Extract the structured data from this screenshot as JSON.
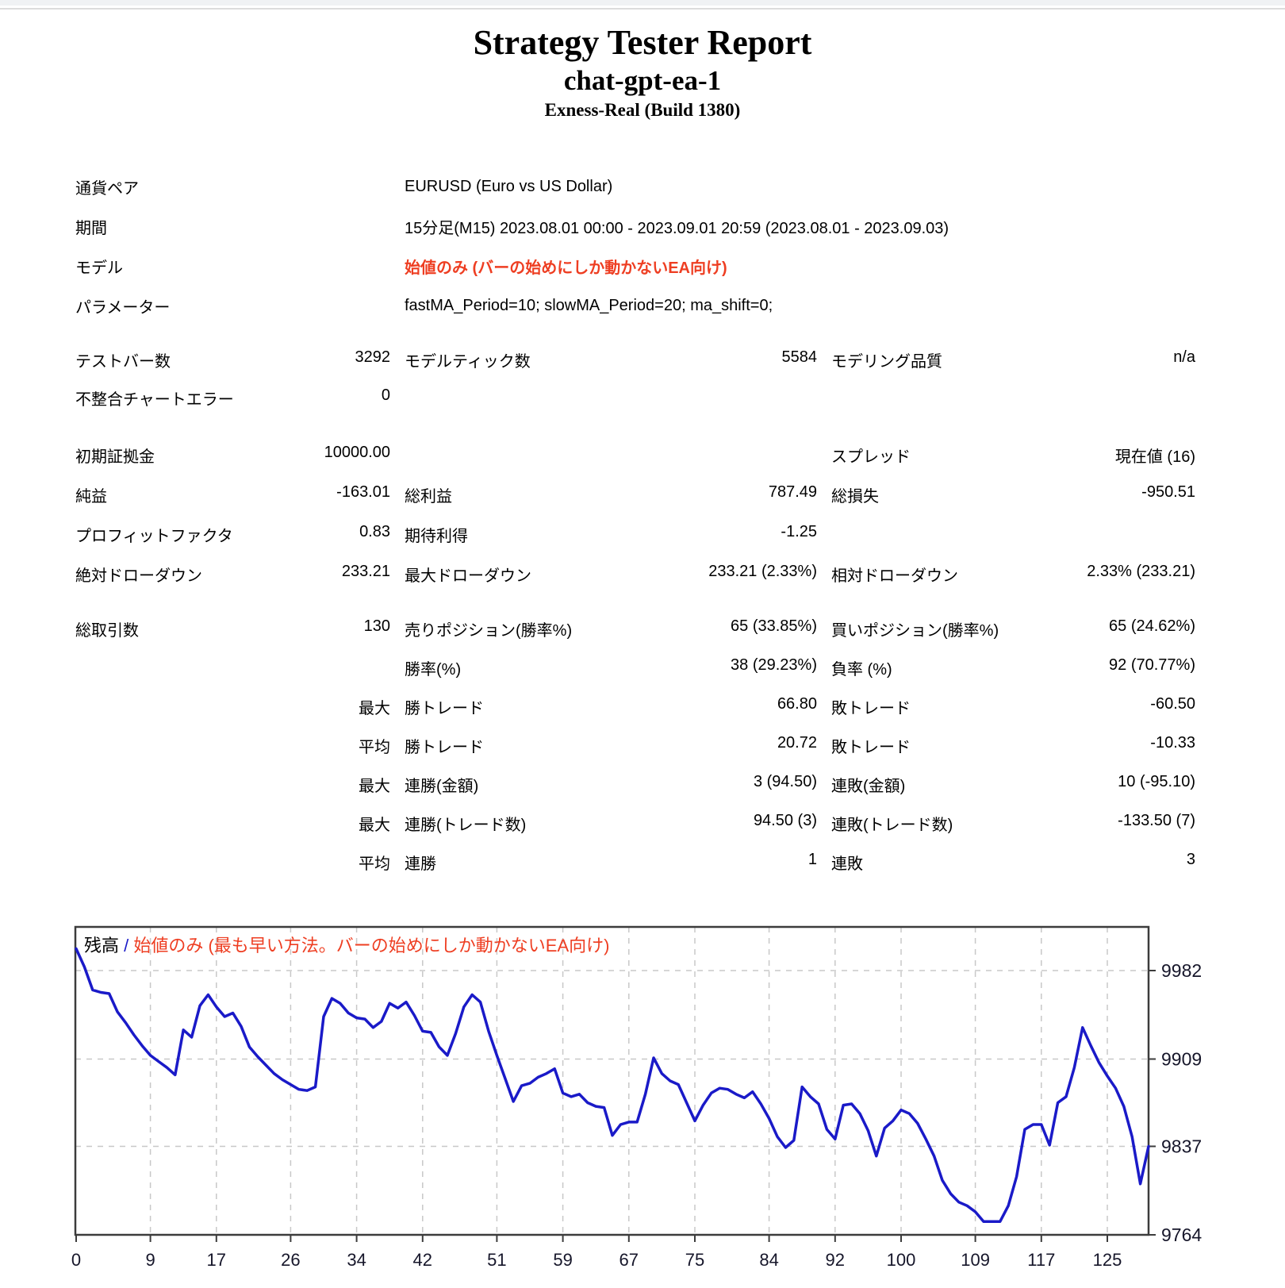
{
  "page": {
    "title": "Strategy Tester Report",
    "subtitle": "chat-gpt-ea-1",
    "server": "Exness-Real (Build 1380)"
  },
  "colors": {
    "accent_red": "#ee3e22",
    "line_blue": "#1a1ac8",
    "grid_gray": "#c8c8c8",
    "border_gray": "#3c3c3c",
    "tick_text": "#16162a"
  },
  "info_rows": [
    {
      "label": "通貨ペア",
      "value": "EURUSD (Euro vs US Dollar)",
      "red": false
    },
    {
      "label": "期間",
      "value": "15分足(M15) 2023.08.01 00:00 - 2023.09.01 20:59 (2023.08.01 - 2023.09.03)",
      "red": false
    },
    {
      "label": "モデル",
      "value": "始値のみ (バーの始めにしか動かないEA向け)",
      "red": true
    },
    {
      "label": "パラメーター",
      "value": "fastMA_Period=10; slowMA_Period=20; ma_shift=0;",
      "red": false
    }
  ],
  "stat_groups": [
    {
      "rows": [
        {
          "c1l": "テストバー数",
          "c1v": "3292",
          "c2l": "モデルティック数",
          "c2v": "5584",
          "c3l": "モデリング品質",
          "c3v": "n/a"
        },
        {
          "c1l": "不整合チャートエラー",
          "c1v": "0",
          "c2l": "",
          "c2v": "",
          "c3l": "",
          "c3v": ""
        }
      ]
    },
    {
      "rows": [
        {
          "c1l": "初期証拠金",
          "c1v": "10000.00",
          "c2l": "",
          "c2v": "",
          "c3l": "スプレッド",
          "c3v": "現在値 (16)"
        },
        {
          "c1l": "純益",
          "c1v": "-163.01",
          "c2l": "総利益",
          "c2v": "787.49",
          "c3l": "総損失",
          "c3v": "-950.51"
        },
        {
          "c1l": "プロフィットファクタ",
          "c1v": "0.83",
          "c2l": "期待利得",
          "c2v": "-1.25",
          "c3l": "",
          "c3v": ""
        },
        {
          "c1l": "絶対ドローダウン",
          "c1v": "233.21",
          "c2l": "最大ドローダウン",
          "c2v": "233.21 (2.33%)",
          "c3l": "相対ドローダウン",
          "c3v": "2.33% (233.21)"
        }
      ]
    },
    {
      "rows": [
        {
          "c1l": "総取引数",
          "c1v": "130",
          "c2l": "売りポジション(勝率%)",
          "c2v": "65 (33.85%)",
          "c3l": "買いポジション(勝率%)",
          "c3v": "65 (24.62%)"
        },
        {
          "c1l": "",
          "c1v": "",
          "c2l": "勝率(%)",
          "c2v": "38 (29.23%)",
          "c3l": "負率 (%)",
          "c3v": "92 (70.77%)"
        },
        {
          "c1l": "",
          "c1v": "最大",
          "c2l": "勝トレード",
          "c2v": "66.80",
          "c3l": "敗トレード",
          "c3v": "-60.50"
        },
        {
          "c1l": "",
          "c1v": "平均",
          "c2l": "勝トレード",
          "c2v": "20.72",
          "c3l": "敗トレード",
          "c3v": "-10.33"
        },
        {
          "c1l": "",
          "c1v": "最大",
          "c2l": "連勝(金額)",
          "c2v": "3 (94.50)",
          "c3l": "連敗(金額)",
          "c3v": "10 (-95.10)"
        },
        {
          "c1l": "",
          "c1v": "最大",
          "c2l": "連勝(トレード数)",
          "c2v": "94.50 (3)",
          "c3l": "連敗(トレード数)",
          "c3v": "-133.50 (7)"
        },
        {
          "c1l": "",
          "c1v": "平均",
          "c2l": "連勝",
          "c2v": "1",
          "c3l": "連敗",
          "c3v": "3"
        }
      ]
    }
  ],
  "chart_data": {
    "type": "line",
    "title": "残高 / 始値のみ (最も早い方法。バーの始めにしか動かないEA向け)",
    "legend": {
      "balance_label": "残高",
      "separator": "/",
      "model_label": "始値のみ (最も早い方法。バーの始めにしか動かないEA向け)"
    },
    "xlabel": "",
    "ylabel": "",
    "xlim": [
      0,
      130
    ],
    "ylim": [
      9764,
      10018
    ],
    "grid": true,
    "legend_position": "top-left",
    "x_ticks": [
      0,
      9,
      17,
      26,
      34,
      42,
      51,
      59,
      67,
      75,
      84,
      92,
      100,
      109,
      117,
      125
    ],
    "y_ticks": [
      9982,
      9909,
      9837,
      9764
    ],
    "series": [
      {
        "name": "残高",
        "x_is_trade_number": true,
        "values": [
          10000,
          9985,
          9966,
          9964,
          9963,
          9948,
          9939,
          9929,
          9920,
          9912,
          9907,
          9902,
          9896,
          9933,
          9927,
          9953,
          9962,
          9952,
          9944,
          9947,
          9936,
          9919,
          9911,
          9904,
          9897,
          9892,
          9888,
          9884,
          9883,
          9886,
          9944,
          9959,
          9955,
          9947,
          9943,
          9942,
          9935,
          9940,
          9955,
          9951,
          9956,
          9945,
          9932,
          9931,
          9919,
          9912,
          9930,
          9952,
          9962,
          9956,
          9932,
          9912,
          9893,
          9874,
          9887,
          9889,
          9894,
          9897,
          9901,
          9881,
          9878,
          9880,
          9873,
          9870,
          9869,
          9846,
          9855,
          9857,
          9857,
          9880,
          9910,
          9897,
          9891,
          9888,
          9873,
          9858,
          9871,
          9881,
          9885,
          9884,
          9880,
          9877,
          9882,
          9872,
          9860,
          9845,
          9836,
          9842,
          9886,
          9878,
          9872,
          9851,
          9843,
          9871,
          9872,
          9864,
          9850,
          9829,
          9852,
          9858,
          9867,
          9864,
          9856,
          9843,
          9829,
          9809,
          9798,
          9791,
          9788,
          9783,
          9775,
          9775,
          9775,
          9788,
          9812,
          9851,
          9855,
          9855,
          9838,
          9873,
          9878,
          9902,
          9935,
          9920,
          9906,
          9895,
          9885,
          9870,
          9845,
          9806,
          9837
        ]
      }
    ]
  }
}
